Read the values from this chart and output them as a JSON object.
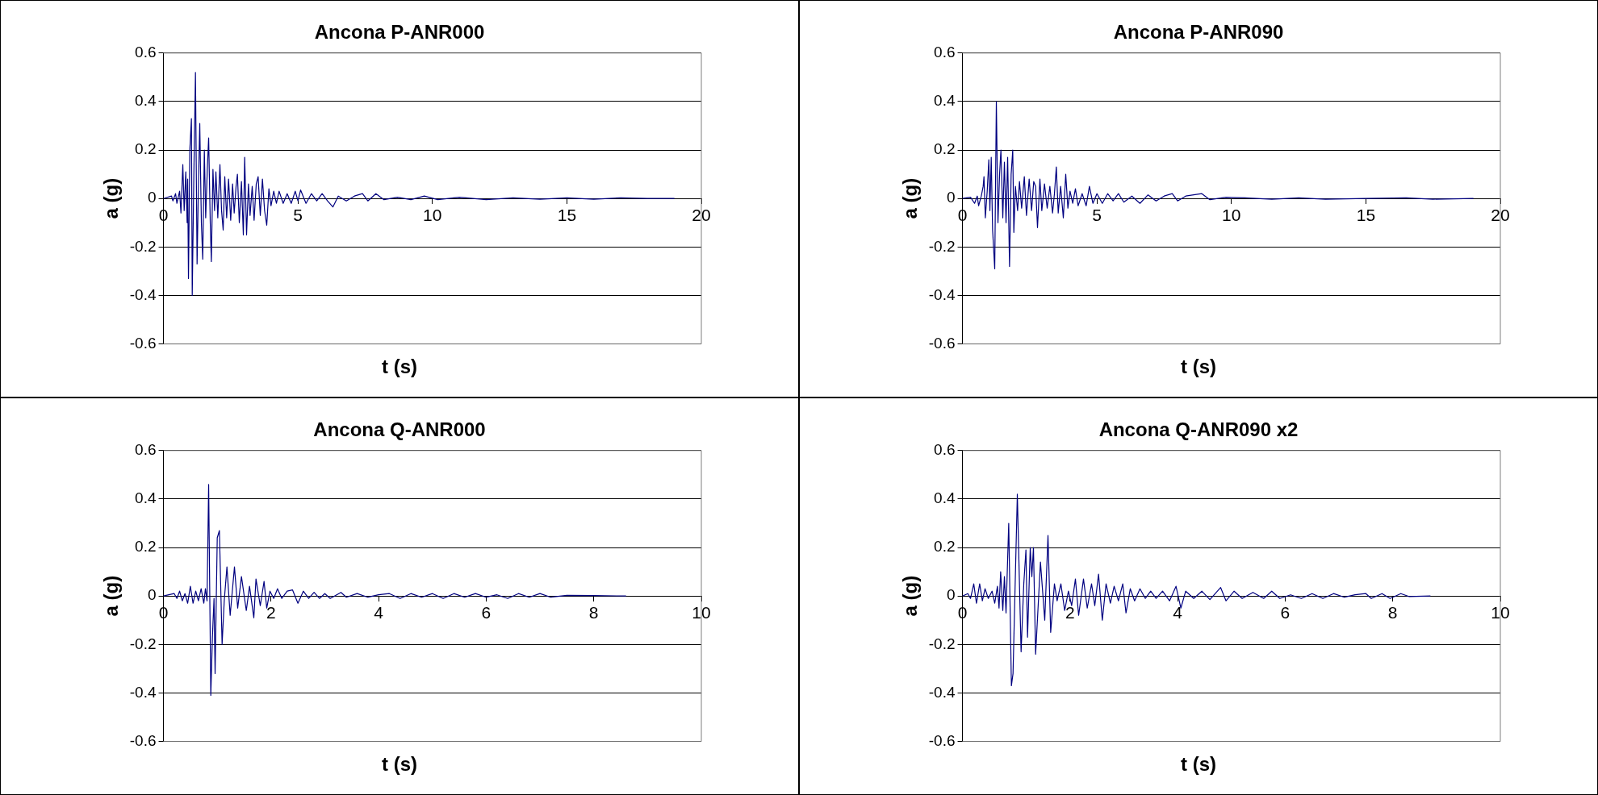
{
  "chart_data": [
    {
      "type": "line",
      "title": "Ancona P-ANR000",
      "xlabel": "t (s)",
      "ylabel": "a (g)",
      "color": "#000080",
      "grid": "y",
      "xlim": [
        0,
        20
      ],
      "xticks": [
        0,
        5,
        10,
        15,
        20
      ],
      "ylim": [
        -0.6,
        0.6
      ],
      "yticks": [
        -0.6,
        -0.4,
        -0.2,
        0,
        0.2,
        0.4,
        0.6
      ],
      "x": [
        0,
        0.3,
        0.35,
        0.45,
        0.5,
        0.6,
        0.65,
        0.72,
        0.77,
        0.83,
        0.88,
        0.9,
        0.93,
        0.98,
        1.04,
        1.07,
        1.13,
        1.19,
        1.25,
        1.3,
        1.35,
        1.41,
        1.46,
        1.52,
        1.57,
        1.63,
        1.68,
        1.74,
        1.78,
        1.84,
        1.9,
        1.95,
        2.02,
        2.1,
        2.16,
        2.22,
        2.28,
        2.35,
        2.42,
        2.5,
        2.57,
        2.63,
        2.7,
        2.75,
        2.82,
        2.9,
        2.97,
        3.02,
        3.09,
        3.16,
        3.22,
        3.3,
        3.37,
        3.45,
        3.52,
        3.6,
        3.68,
        3.76,
        3.84,
        3.92,
        4.0,
        4.1,
        4.2,
        4.3,
        4.45,
        4.6,
        4.75,
        4.9,
        5.0,
        5.1,
        5.3,
        5.5,
        5.7,
        5.9,
        6.1,
        6.3,
        6.5,
        6.8,
        7.1,
        7.4,
        7.6,
        7.9,
        8.2,
        8.7,
        9.2,
        9.7,
        10.2,
        11,
        12,
        13,
        14,
        15,
        16,
        17,
        18,
        19
      ],
      "values": [
        0,
        0.01,
        -0.01,
        0.02,
        -0.02,
        0.03,
        -0.06,
        0.14,
        -0.05,
        0.11,
        -0.1,
        0.08,
        -0.33,
        0.2,
        0.33,
        -0.4,
        0.1,
        0.52,
        -0.27,
        0.05,
        0.31,
        -0.1,
        -0.25,
        0.2,
        -0.08,
        0.12,
        0.25,
        -0.1,
        -0.26,
        0.12,
        -0.05,
        0.11,
        -0.08,
        0.14,
        -0.05,
        -0.13,
        0.09,
        -0.08,
        0.08,
        -0.09,
        0.06,
        -0.06,
        0.05,
        0.1,
        -0.1,
        0.07,
        -0.15,
        0.17,
        -0.15,
        0.06,
        -0.07,
        0.05,
        -0.09,
        0.06,
        0.09,
        -0.07,
        0.08,
        -0.05,
        -0.11,
        0.04,
        -0.03,
        0.03,
        -0.02,
        0.03,
        -0.02,
        0.02,
        -0.02,
        0.03,
        -0.01,
        0.035,
        -0.02,
        0.02,
        -0.01,
        0.02,
        -0.01,
        -0.035,
        0.01,
        -0.01,
        0.01,
        0.02,
        -0.01,
        0.02,
        -0.005,
        0.005,
        -0.005,
        0.01,
        -0.005,
        0.005,
        -0.005,
        0.003,
        -0.003,
        0.003,
        -0.003,
        0.003,
        0,
        0
      ]
    },
    {
      "type": "line",
      "title": "Ancona P-ANR090",
      "xlabel": "t (s)",
      "ylabel": "a (g)",
      "color": "#000080",
      "grid": "y",
      "xlim": [
        0,
        20
      ],
      "xticks": [
        0,
        5,
        10,
        15,
        20
      ],
      "ylim": [
        -0.6,
        0.6
      ],
      "yticks": [
        -0.6,
        -0.4,
        -0.2,
        0,
        0.2,
        0.4,
        0.6
      ],
      "x": [
        0,
        0.3,
        0.45,
        0.55,
        0.6,
        0.7,
        0.77,
        0.8,
        0.85,
        0.92,
        0.98,
        1.02,
        1.07,
        1.12,
        1.2,
        1.26,
        1.32,
        1.38,
        1.43,
        1.5,
        1.56,
        1.62,
        1.68,
        1.75,
        1.81,
        1.87,
        1.91,
        1.97,
        2.05,
        2.12,
        2.2,
        2.3,
        2.38,
        2.48,
        2.57,
        2.65,
        2.72,
        2.79,
        2.88,
        2.95,
        3.05,
        3.15,
        3.25,
        3.35,
        3.42,
        3.49,
        3.56,
        3.65,
        3.75,
        3.84,
        3.92,
        4.0,
        4.1,
        4.2,
        4.3,
        4.45,
        4.6,
        4.72,
        4.85,
        5.0,
        5.2,
        5.4,
        5.6,
        5.8,
        6.0,
        6.3,
        6.6,
        6.9,
        7.2,
        7.5,
        7.8,
        8.0,
        8.3,
        8.9,
        9.2,
        9.8,
        10.5,
        11.5,
        12.5,
        13.5,
        15,
        16.5,
        17.5,
        19
      ],
      "values": [
        0,
        0.005,
        -0.02,
        0.01,
        -0.03,
        0.01,
        0.05,
        0.09,
        -0.08,
        0.03,
        0.16,
        -0.05,
        0.17,
        -0.13,
        -0.29,
        0.4,
        -0.1,
        0.1,
        0.2,
        -0.08,
        0.15,
        -0.1,
        0.17,
        -0.28,
        0.1,
        0.2,
        -0.14,
        0.05,
        -0.05,
        0.07,
        -0.04,
        0.09,
        -0.07,
        0.08,
        -0.05,
        0.07,
        0.05,
        -0.12,
        0.08,
        -0.05,
        0.06,
        -0.04,
        0.05,
        -0.06,
        0.02,
        0.13,
        -0.06,
        0.05,
        -0.08,
        0.1,
        -0.04,
        0.03,
        -0.02,
        0.04,
        -0.03,
        0.02,
        -0.03,
        0.05,
        -0.02,
        0.02,
        -0.02,
        0.02,
        -0.01,
        0.02,
        -0.015,
        0.01,
        -0.02,
        0.015,
        -0.01,
        0.01,
        0.02,
        -0.01,
        0.01,
        0.02,
        -0.005,
        0.005,
        0.003,
        -0.003,
        0.003,
        -0.003,
        0,
        0.003,
        -0.003,
        0
      ]
    },
    {
      "type": "line",
      "title": "Ancona Q-ANR000",
      "xlabel": "t (s)",
      "ylabel": "a (g)",
      "color": "#000080",
      "grid": "y",
      "xlim": [
        0,
        10
      ],
      "xticks": [
        0,
        2,
        4,
        6,
        8,
        10
      ],
      "ylim": [
        -0.6,
        0.6
      ],
      "yticks": [
        -0.6,
        -0.4,
        -0.2,
        0,
        0.2,
        0.4,
        0.6
      ],
      "x": [
        0,
        0.1,
        0.2,
        0.25,
        0.3,
        0.35,
        0.4,
        0.45,
        0.5,
        0.55,
        0.6,
        0.65,
        0.7,
        0.75,
        0.78,
        0.81,
        0.84,
        0.88,
        0.91,
        0.94,
        0.96,
        1.0,
        1.04,
        1.09,
        1.13,
        1.18,
        1.24,
        1.32,
        1.38,
        1.45,
        1.54,
        1.6,
        1.68,
        1.72,
        1.8,
        1.87,
        1.92,
        1.98,
        2.05,
        2.12,
        2.2,
        2.3,
        2.4,
        2.5,
        2.6,
        2.7,
        2.8,
        2.9,
        3.0,
        3.1,
        3.3,
        3.4,
        3.6,
        3.8,
        4.0,
        4.2,
        4.4,
        4.6,
        4.8,
        5.0,
        5.2,
        5.4,
        5.6,
        5.8,
        6.0,
        6.2,
        6.4,
        6.6,
        6.8,
        7.0,
        7.2,
        7.5,
        8.0,
        8.6
      ],
      "values": [
        0,
        0.005,
        0.01,
        -0.01,
        0.02,
        -0.02,
        0.01,
        -0.03,
        0.04,
        -0.03,
        0.02,
        -0.02,
        0.03,
        -0.03,
        0.03,
        -0.02,
        0.46,
        -0.41,
        -0.17,
        -0.01,
        -0.32,
        0.24,
        0.27,
        -0.2,
        -0.02,
        0.12,
        -0.08,
        0.12,
        -0.05,
        0.08,
        -0.06,
        0.04,
        -0.09,
        0.07,
        -0.04,
        0.06,
        -0.05,
        0.02,
        -0.01,
        0.03,
        -0.01,
        0.02,
        0.025,
        -0.03,
        0.02,
        -0.01,
        0.015,
        -0.01,
        0.01,
        -0.01,
        0.015,
        -0.005,
        0.01,
        -0.005,
        0.005,
        0.01,
        -0.01,
        0.01,
        -0.005,
        0.01,
        -0.01,
        0.01,
        -0.005,
        0.01,
        -0.005,
        0.005,
        -0.01,
        0.01,
        -0.005,
        0.01,
        -0.005,
        0.003,
        0.002,
        0
      ]
    },
    {
      "type": "line",
      "title": "Ancona Q-ANR090 x2",
      "xlabel": "t (s)",
      "ylabel": "a (g)",
      "color": "#000080",
      "grid": "y",
      "xlim": [
        0,
        10
      ],
      "xticks": [
        0,
        2,
        4,
        6,
        8,
        10
      ],
      "ylim": [
        -0.6,
        0.6
      ],
      "yticks": [
        -0.6,
        -0.4,
        -0.2,
        0,
        0.2,
        0.4,
        0.6
      ],
      "x": [
        0,
        0.1,
        0.15,
        0.21,
        0.26,
        0.32,
        0.37,
        0.42,
        0.48,
        0.55,
        0.6,
        0.65,
        0.68,
        0.71,
        0.75,
        0.78,
        0.81,
        0.86,
        0.91,
        0.94,
        0.98,
        1.02,
        1.09,
        1.14,
        1.18,
        1.21,
        1.26,
        1.29,
        1.32,
        1.36,
        1.45,
        1.53,
        1.59,
        1.64,
        1.71,
        1.76,
        1.83,
        1.9,
        1.97,
        2.03,
        2.1,
        2.16,
        2.25,
        2.32,
        2.4,
        2.46,
        2.53,
        2.6,
        2.67,
        2.75,
        2.82,
        2.9,
        2.98,
        3.04,
        3.12,
        3.2,
        3.3,
        3.4,
        3.5,
        3.6,
        3.72,
        3.85,
        3.97,
        4.06,
        4.15,
        4.3,
        4.45,
        4.6,
        4.8,
        4.9,
        5.05,
        5.2,
        5.4,
        5.6,
        5.75,
        5.9,
        6.1,
        6.3,
        6.5,
        6.7,
        6.9,
        7.1,
        7.3,
        7.5,
        7.6,
        7.8,
        7.95,
        8.15,
        8.3,
        8.7
      ],
      "values": [
        0,
        0.01,
        -0.01,
        0.05,
        -0.03,
        0.05,
        -0.02,
        0.03,
        -0.01,
        0.02,
        -0.03,
        0.04,
        -0.05,
        0.1,
        -0.06,
        0.08,
        -0.07,
        0.3,
        -0.37,
        -0.32,
        0.05,
        0.42,
        -0.23,
        0.05,
        0.19,
        -0.17,
        0.2,
        0.08,
        0.2,
        -0.24,
        0.14,
        -0.1,
        0.25,
        -0.15,
        0.05,
        -0.02,
        0.05,
        -0.06,
        0.02,
        -0.04,
        0.07,
        -0.08,
        0.07,
        -0.05,
        0.05,
        -0.04,
        0.09,
        -0.1,
        0.05,
        -0.03,
        0.04,
        -0.02,
        0.05,
        -0.07,
        0.03,
        -0.02,
        0.03,
        -0.01,
        0.02,
        -0.01,
        0.02,
        -0.02,
        0.04,
        -0.05,
        0.02,
        -0.01,
        0.02,
        -0.015,
        0.035,
        -0.02,
        0.02,
        -0.01,
        0.015,
        -0.01,
        0.02,
        -0.01,
        0.005,
        -0.01,
        0.01,
        -0.01,
        0.01,
        -0.005,
        0.005,
        0.01,
        -0.01,
        0.01,
        -0.01,
        0.01,
        -0.002,
        0
      ]
    }
  ]
}
